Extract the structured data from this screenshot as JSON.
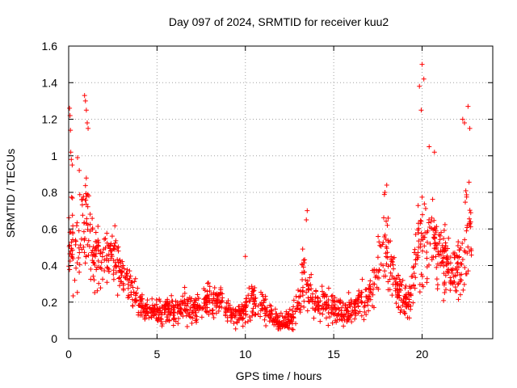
{
  "chart_data": {
    "type": "scatter",
    "title": "Day 097 of 2024, SRMTID for receiver kuu2",
    "xlabel": "GPS time / hours",
    "ylabel": "SRMTID / TECUs",
    "xlim": [
      0,
      24
    ],
    "ylim": [
      0,
      1.6
    ],
    "xticks": [
      0,
      5,
      10,
      15,
      20
    ],
    "xtick_labels": [
      "0",
      "5",
      "10",
      "15",
      "20"
    ],
    "yticks": [
      0,
      0.2,
      0.4,
      0.6,
      0.8,
      1,
      1.2,
      1.4,
      1.6
    ],
    "ytick_labels": [
      "0",
      "0.2",
      "0.4",
      "0.6",
      "0.8",
      "1",
      "1.2",
      "1.4",
      "1.6"
    ],
    "grid": true,
    "marker": "plus",
    "color": "#ff0000",
    "profile": {
      "x": [
        0,
        0.3,
        0.8,
        1.0,
        1.5,
        2.0,
        2.5,
        3.0,
        3.5,
        4.0,
        4.5,
        5.0,
        6.0,
        7.0,
        8.0,
        8.5,
        9.0,
        9.5,
        10.0,
        10.5,
        11.0,
        11.5,
        12.0,
        12.5,
        13.0,
        13.3,
        13.6,
        14.0,
        15.0,
        15.5,
        16.0,
        16.5,
        17.0,
        17.5,
        17.9,
        18.3,
        18.6,
        19.0,
        19.4,
        19.7,
        20.0,
        20.3,
        20.6,
        21.0,
        21.4,
        21.8,
        22.2,
        22.5,
        22.8
      ],
      "center": [
        0.65,
        0.45,
        0.55,
        0.65,
        0.45,
        0.45,
        0.5,
        0.35,
        0.28,
        0.18,
        0.15,
        0.15,
        0.16,
        0.17,
        0.2,
        0.22,
        0.16,
        0.12,
        0.16,
        0.2,
        0.18,
        0.12,
        0.08,
        0.1,
        0.18,
        0.35,
        0.25,
        0.2,
        0.18,
        0.14,
        0.15,
        0.2,
        0.22,
        0.4,
        0.55,
        0.4,
        0.25,
        0.2,
        0.25,
        0.45,
        0.55,
        0.5,
        0.6,
        0.45,
        0.42,
        0.38,
        0.35,
        0.55,
        0.6
      ],
      "spread": [
        0.3,
        0.15,
        0.2,
        0.25,
        0.15,
        0.15,
        0.12,
        0.1,
        0.08,
        0.06,
        0.05,
        0.05,
        0.06,
        0.07,
        0.08,
        0.08,
        0.06,
        0.05,
        0.07,
        0.08,
        0.07,
        0.05,
        0.04,
        0.05,
        0.08,
        0.15,
        0.1,
        0.08,
        0.07,
        0.06,
        0.06,
        0.07,
        0.08,
        0.15,
        0.2,
        0.15,
        0.1,
        0.08,
        0.1,
        0.2,
        0.25,
        0.2,
        0.2,
        0.15,
        0.15,
        0.15,
        0.18,
        0.25,
        0.2
      ]
    },
    "outliers": {
      "x": [
        0.05,
        0.08,
        0.1,
        0.12,
        0.15,
        0.2,
        0.9,
        0.95,
        1.0,
        1.05,
        1.1,
        20.0,
        20.1,
        19.85,
        19.95,
        22.3,
        22.6,
        22.7,
        22.4,
        10.0,
        13.5,
        13.45,
        18.0,
        17.9,
        0.6,
        0.5,
        20.4,
        20.7
      ],
      "y": [
        1.26,
        1.22,
        1.14,
        1.02,
        0.98,
        0.95,
        1.33,
        1.3,
        1.25,
        1.18,
        1.15,
        1.5,
        1.42,
        1.38,
        1.25,
        1.2,
        1.27,
        1.15,
        1.18,
        0.45,
        0.7,
        0.65,
        0.84,
        0.8,
        0.92,
        0.99,
        1.05,
        1.02
      ]
    },
    "point_count": 1500
  }
}
